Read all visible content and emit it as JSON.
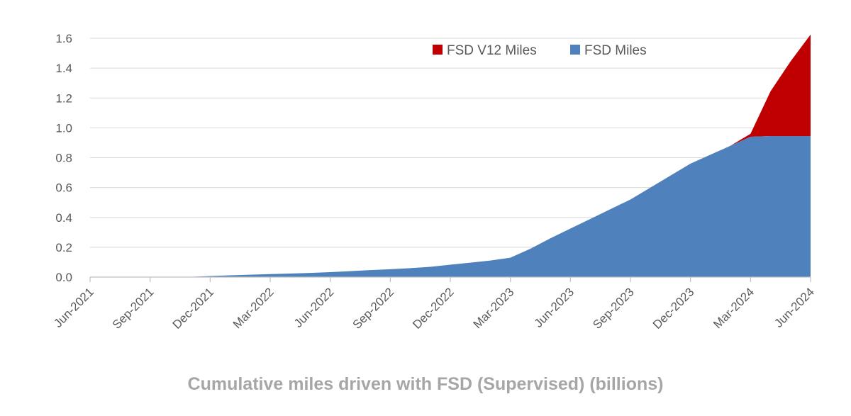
{
  "chart_data": {
    "type": "area",
    "stacked": true,
    "x": [
      "Jun-2021",
      "Jul-2021",
      "Aug-2021",
      "Sep-2021",
      "Oct-2021",
      "Nov-2021",
      "Dec-2021",
      "Jan-2022",
      "Feb-2022",
      "Mar-2022",
      "Apr-2022",
      "May-2022",
      "Jun-2022",
      "Jul-2022",
      "Aug-2022",
      "Sep-2022",
      "Oct-2022",
      "Nov-2022",
      "Dec-2022",
      "Jan-2023",
      "Feb-2023",
      "Mar-2023",
      "Apr-2023",
      "May-2023",
      "Jun-2023",
      "Jul-2023",
      "Aug-2023",
      "Sep-2023",
      "Oct-2023",
      "Nov-2023",
      "Dec-2023",
      "Jan-2024",
      "Feb-2024",
      "Mar-2024",
      "Apr-2024",
      "May-2024",
      "Jun-2024"
    ],
    "x_tick_labels": [
      "Jun-2021",
      "Sep-2021",
      "Dec-2021",
      "Mar-2022",
      "Jun-2022",
      "Sep-2022",
      "Dec-2022",
      "Mar-2023",
      "Jun-2023",
      "Sep-2023",
      "Dec-2023",
      "Mar-2024",
      "Jun-2024"
    ],
    "series": [
      {
        "name": "FSD Miles",
        "color": "#4f81bd",
        "values": [
          0,
          0,
          0,
          0,
          0,
          0.002,
          0.007,
          0.012,
          0.016,
          0.02,
          0.024,
          0.028,
          0.033,
          0.04,
          0.047,
          0.053,
          0.06,
          0.069,
          0.083,
          0.097,
          0.111,
          0.13,
          0.19,
          0.26,
          0.325,
          0.39,
          0.455,
          0.52,
          0.6,
          0.68,
          0.76,
          0.82,
          0.88,
          0.94,
          0.945,
          0.945,
          0.945
        ]
      },
      {
        "name": "FSD V12 Miles",
        "color": "#c00000",
        "values": [
          0,
          0,
          0,
          0,
          0,
          0,
          0,
          0,
          0,
          0,
          0,
          0,
          0,
          0,
          0,
          0,
          0,
          0,
          0,
          0,
          0,
          0,
          0,
          0,
          0,
          0,
          0,
          0,
          0,
          0,
          0,
          0,
          0,
          0.02,
          0.3,
          0.5,
          0.68
        ]
      }
    ],
    "legend_order": [
      "FSD V12 Miles",
      "FSD Miles"
    ],
    "legend_position": "top-right",
    "ylim": [
      0,
      1.6
    ],
    "y_ticks": [
      "0.0",
      "0.2",
      "0.4",
      "0.6",
      "0.8",
      "1.0",
      "1.2",
      "1.4",
      "1.6"
    ],
    "grid": true,
    "caption": "Cumulative miles driven with FSD (Supervised) (billions)"
  }
}
